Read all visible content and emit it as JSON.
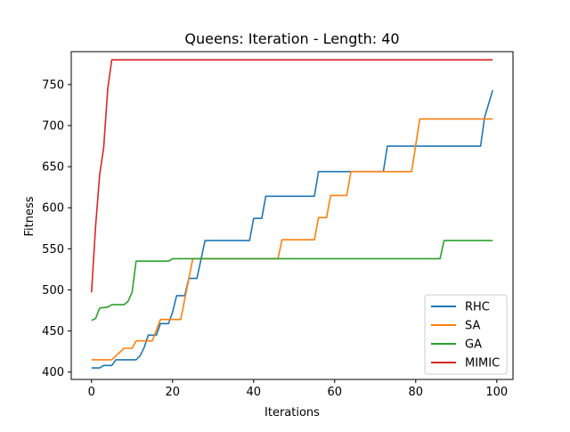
{
  "chart_data": {
    "type": "line",
    "title": "Queens: Iteration - Length: 40",
    "xlabel": "Iterations",
    "ylabel": "Fitness",
    "xlim": [
      -5,
      104
    ],
    "ylim": [
      391,
      790
    ],
    "x_ticks": [
      0,
      20,
      40,
      60,
      80,
      100
    ],
    "y_ticks": [
      400,
      450,
      500,
      550,
      600,
      650,
      700,
      750
    ],
    "grid": false,
    "legend_position": "bottom-right",
    "series": [
      {
        "name": "RHC",
        "color": "#1f77b4",
        "points": [
          [
            0,
            405
          ],
          [
            2,
            405
          ],
          [
            3,
            408
          ],
          [
            5,
            408
          ],
          [
            6,
            415
          ],
          [
            11,
            415
          ],
          [
            12,
            420
          ],
          [
            13,
            430
          ],
          [
            14,
            445
          ],
          [
            16,
            445
          ],
          [
            17,
            459
          ],
          [
            19,
            459
          ],
          [
            20,
            473
          ],
          [
            21,
            493
          ],
          [
            23,
            493
          ],
          [
            24,
            514
          ],
          [
            26,
            514
          ],
          [
            28,
            560
          ],
          [
            39,
            560
          ],
          [
            40,
            587
          ],
          [
            42,
            587
          ],
          [
            43,
            614
          ],
          [
            55,
            614
          ],
          [
            56,
            644
          ],
          [
            72,
            644
          ],
          [
            73,
            675
          ],
          [
            96,
            675
          ],
          [
            97,
            710
          ],
          [
            99,
            743
          ]
        ]
      },
      {
        "name": "SA",
        "color": "#ff7f0e",
        "points": [
          [
            0,
            415
          ],
          [
            5,
            415
          ],
          [
            8,
            429
          ],
          [
            10,
            429
          ],
          [
            11,
            438
          ],
          [
            15,
            438
          ],
          [
            17,
            464
          ],
          [
            22,
            464
          ],
          [
            25,
            538
          ],
          [
            46,
            538
          ],
          [
            47,
            561
          ],
          [
            55,
            561
          ],
          [
            56,
            588
          ],
          [
            58,
            588
          ],
          [
            59,
            615
          ],
          [
            63,
            615
          ],
          [
            64,
            644
          ],
          [
            79,
            644
          ],
          [
            81,
            708
          ],
          [
            99,
            708
          ]
        ]
      },
      {
        "name": "GA",
        "color": "#2ca02c",
        "points": [
          [
            0,
            463
          ],
          [
            1,
            465
          ],
          [
            2,
            478
          ],
          [
            4,
            479
          ],
          [
            5,
            482
          ],
          [
            8,
            482
          ],
          [
            9,
            486
          ],
          [
            10,
            497
          ],
          [
            11,
            535
          ],
          [
            19,
            535
          ],
          [
            20,
            538
          ],
          [
            86,
            538
          ],
          [
            87,
            560
          ],
          [
            99,
            560
          ]
        ]
      },
      {
        "name": "MIMIC",
        "color": "#d62728",
        "points": [
          [
            0,
            497
          ],
          [
            1,
            577
          ],
          [
            2,
            640
          ],
          [
            3,
            673
          ],
          [
            4,
            745
          ],
          [
            5,
            780
          ],
          [
            99,
            780
          ]
        ]
      }
    ]
  }
}
